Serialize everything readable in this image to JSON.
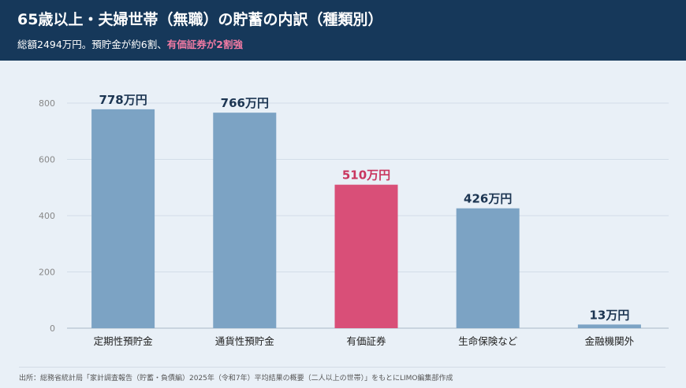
{
  "header": {
    "title": "65歳以上・夫婦世帯（無職）の貯蓄の内訳（種類別）",
    "subtitle_plain": "総額2494万円。預貯金が約6割、",
    "subtitle_highlight": "有価証券が2割強"
  },
  "colors": {
    "header_bg": "#16385a",
    "bar_default": "#7ca3c4",
    "bar_highlight": "#d94f78",
    "label_default": "#1c3552",
    "label_highlight": "#c9365f",
    "subtitle_highlight": "#f07aa3"
  },
  "chart_data": {
    "type": "bar",
    "categories": [
      "定期性預貯金",
      "通貨性預貯金",
      "有価証券",
      "生命保険など",
      "金融機関外"
    ],
    "values": [
      778,
      766,
      510,
      426,
      13
    ],
    "data_labels": [
      "778万円",
      "766万円",
      "510万円",
      "426万円",
      "13万円"
    ],
    "highlight_index": 2,
    "yticks": [
      0,
      200,
      400,
      600,
      800
    ],
    "ylim": [
      0,
      850
    ],
    "grid": true,
    "legend": "none"
  },
  "footer": {
    "source": "出所：総務省統計局「家計調査報告（貯蓄・負債編）2025年（令和7年）平均結果の概要（二人以上の世帯）」をもとにLIMO編集部作成"
  }
}
